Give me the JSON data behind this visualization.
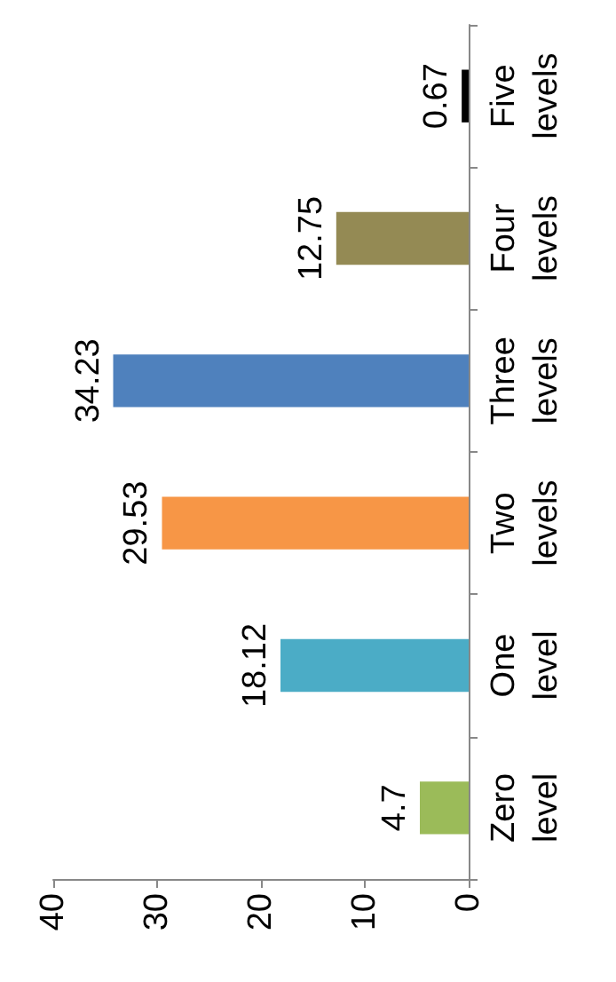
{
  "chart_data": {
    "type": "bar",
    "orientation": "horizontal",
    "categories": [
      "Five levels",
      "Four levels",
      "Three levels",
      "Two levels",
      "One level",
      "Zero level"
    ],
    "values": [
      0.67,
      12.75,
      34.23,
      29.53,
      18.12,
      4.7
    ],
    "colors": [
      "#000000",
      "#948a54",
      "#4f81bd",
      "#f79646",
      "#4bacc6",
      "#9bbb59"
    ],
    "xlim": [
      40,
      0
    ],
    "xticks": [
      40,
      30,
      20,
      10,
      0
    ],
    "data_labels": true,
    "grid": false
  }
}
